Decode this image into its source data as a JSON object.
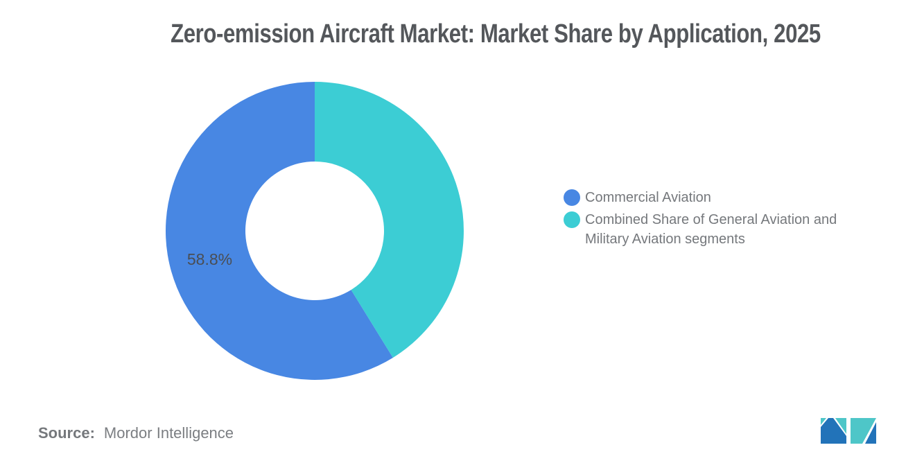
{
  "title": "Zero-emission Aircraft Market: Market Share by Application, 2025",
  "chart_data": {
    "type": "pie",
    "subtype": "donut",
    "title": "Zero-emission Aircraft Market: Market Share by Application, 2025",
    "slices": [
      {
        "label": "Commercial Aviation",
        "value": 58.8,
        "display_label": "58.8%",
        "color": "#4887E3"
      },
      {
        "label": "Combined Share of General Aviation and Military Aviation segments",
        "value": 41.2,
        "display_label": "",
        "color": "#3CCDD4"
      }
    ],
    "start_angle_deg": 0,
    "direction": "counterclockwise-from-top",
    "inner_radius_ratio": 0.465,
    "legend_position": "right",
    "data_label_color": "#4A4E54"
  },
  "source": {
    "label": "Source:",
    "value": "Mordor Intelligence"
  },
  "logo": {
    "name": "mordor-intelligence-logo",
    "teal": "#4EC6C8",
    "blue": "#2273B9"
  },
  "colors": {
    "title_text": "#54575B",
    "legend_text": "#75787C",
    "source_text": "#7B7E82",
    "background": "#FFFFFF"
  }
}
